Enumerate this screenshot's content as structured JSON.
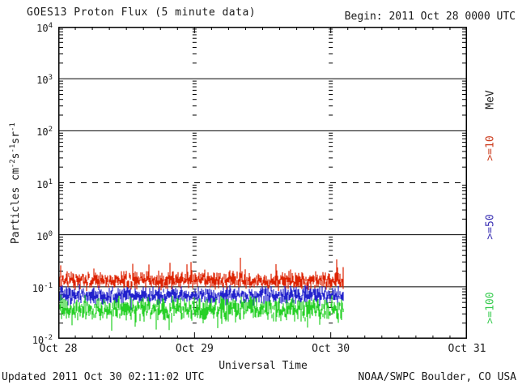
{
  "header": {
    "title": "GOES13 Proton Flux (5 minute data)",
    "begin": "Begin: 2011 Oct 28 0000 UTC"
  },
  "footer": {
    "updated": "Updated 2011 Oct 30 02:11:02 UTC",
    "credit": "NOAA/SWPC Boulder, CO USA"
  },
  "y_axis": {
    "base": "10",
    "tick_exponents": [
      "4",
      "3",
      "2",
      "1",
      "0",
      "-1",
      "-2"
    ],
    "label_parts": [
      {
        "text": "Particles cm",
        "sup": false
      },
      {
        "text": "-2",
        "sup": true
      },
      {
        "text": "s",
        "sup": false
      },
      {
        "text": "-1",
        "sup": true
      },
      {
        "text": "sr",
        "sup": false
      },
      {
        "text": "-1",
        "sup": true
      }
    ]
  },
  "x_axis": {
    "tick_labels": [
      "Oct 28",
      "Oct 29",
      "Oct 30",
      "Oct 31"
    ],
    "title": "Universal Time"
  },
  "right_axis": {
    "unit_label": {
      "text": "MeV",
      "color": "#1a1a1a"
    },
    "series_labels": [
      {
        "text": ">=10",
        "color": "#cc3c1e"
      },
      {
        "text": ">=50",
        "color": "#3c32b4"
      },
      {
        "text": ">=100",
        "color": "#38cc50"
      }
    ]
  },
  "chart_data": {
    "type": "line",
    "title": "GOES13 Proton Flux (5 minute data)",
    "xlabel": "Universal Time",
    "ylabel": "Particles cm-2s-1sr-1",
    "x_range": [
      "2011 Oct 28 0000 UTC",
      "2011 Oct 31 0000 UTC"
    ],
    "x_tick_labels": [
      "Oct 28",
      "Oct 29",
      "Oct 30",
      "Oct 31"
    ],
    "x_minor_tick_hours": 3,
    "y_scale": "log",
    "y_range": [
      0.01,
      10000
    ],
    "y_tick_values": [
      10000,
      1000,
      100,
      10,
      1,
      0.1,
      0.01
    ],
    "solid_gridline_values": [
      1000,
      100,
      1,
      0.1
    ],
    "dashed_gridline_values": [
      10
    ],
    "grid": true,
    "legend_position": "right-outside",
    "data_end_days_from_start": 2.09,
    "data_end_label": "2011 Oct 30 ~02:11 UTC",
    "sample_interval": "5 minute",
    "series": [
      {
        "name": "Protons >=10 MeV",
        "legend": ">=10",
        "color": "#dd2200",
        "approx_mean_flux": 0.13,
        "approx_min_flux": 0.08,
        "approx_max_flux": 0.45,
        "log10_mean": -0.88,
        "log10_jitter": 0.09,
        "spike_up_log10": 0.42,
        "spike_up_prob": 0.05,
        "spike_down_log10": 0.06,
        "spike_down_prob": 0.02
      },
      {
        "name": "Protons >=50 MeV",
        "legend": ">=50",
        "color": "#2222cc",
        "approx_mean_flux": 0.065,
        "approx_min_flux": 0.03,
        "approx_max_flux": 0.13,
        "log10_mean": -1.17,
        "log10_jitter": 0.09,
        "spike_up_log10": 0.14,
        "spike_up_prob": 0.05,
        "spike_down_log10": 0.12,
        "spike_down_prob": 0.03
      },
      {
        "name": "Protons >=100 MeV",
        "legend": ">=100",
        "color": "#26d026",
        "approx_mean_flux": 0.038,
        "approx_min_flux": 0.012,
        "approx_max_flux": 0.08,
        "log10_mean": -1.43,
        "log10_jitter": 0.12,
        "spike_up_log10": 0.12,
        "spike_up_prob": 0.05,
        "spike_down_log10": 0.3,
        "spike_down_prob": 0.06
      }
    ]
  }
}
